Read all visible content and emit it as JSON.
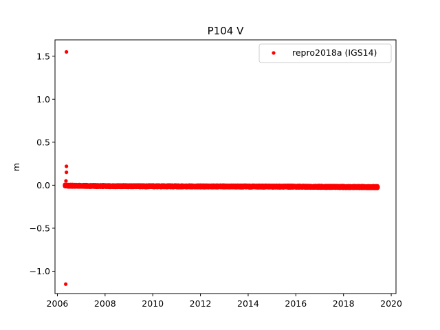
{
  "chart_data": {
    "type": "scatter",
    "title": "P104 V",
    "xlabel": "",
    "ylabel": "m",
    "xlim": [
      2005.9,
      2020.2
    ],
    "ylim": [
      -1.26,
      1.69
    ],
    "xticks": [
      2006,
      2008,
      2010,
      2012,
      2014,
      2016,
      2018,
      2020
    ],
    "xtick_labels": [
      "2006",
      "2008",
      "2010",
      "2012",
      "2014",
      "2016",
      "2018",
      "2020"
    ],
    "yticks": [
      -1.0,
      -0.5,
      0.0,
      0.5,
      1.0,
      1.5
    ],
    "ytick_labels": [
      "−1.0",
      "−0.5",
      "0.0",
      "0.5",
      "1.0",
      "1.5"
    ],
    "grid": false,
    "legend_position": "top-right",
    "series": [
      {
        "name": "repro2018a (IGS14)",
        "color": "#ff0000",
        "marker": "circle",
        "x_start": 2006.3,
        "x_end": 2019.45,
        "outliers": [
          {
            "x": 2006.38,
            "y": 1.55
          },
          {
            "x": 2006.38,
            "y": 0.22
          },
          {
            "x": 2006.38,
            "y": 0.15
          },
          {
            "x": 2006.36,
            "y": 0.05
          },
          {
            "x": 2006.35,
            "y": -1.15
          }
        ],
        "trend": [
          {
            "x": 2006.3,
            "y": -0.005
          },
          {
            "x": 2008.0,
            "y": -0.01
          },
          {
            "x": 2010.0,
            "y": -0.012
          },
          {
            "x": 2012.0,
            "y": -0.014
          },
          {
            "x": 2014.0,
            "y": -0.015
          },
          {
            "x": 2016.0,
            "y": -0.017
          },
          {
            "x": 2018.0,
            "y": -0.02
          },
          {
            "x": 2019.45,
            "y": -0.022
          }
        ]
      }
    ]
  }
}
